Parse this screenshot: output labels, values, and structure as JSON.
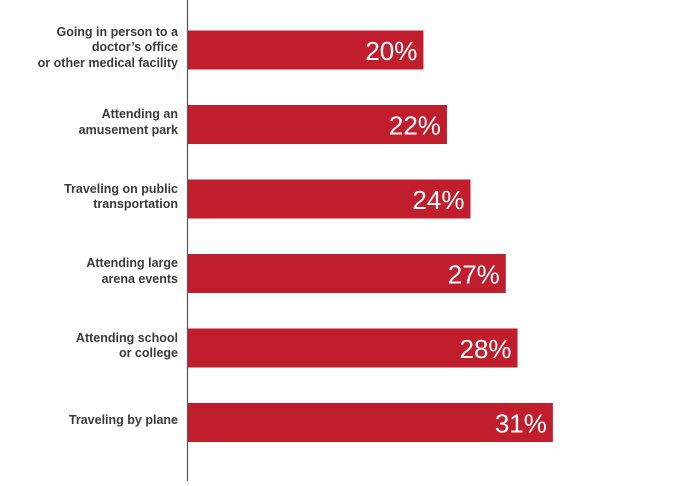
{
  "chart_data": {
    "type": "bar",
    "orientation": "horizontal",
    "categories": [
      "Going in person to a \ndoctor’s office\nor other medical facility",
      "Attending an\namusement park",
      "Traveling on public\ntransportation",
      "Attending large\narena events",
      "Attending school\nor college",
      "Traveling by plane"
    ],
    "values": [
      20,
      22,
      24,
      27,
      28,
      31
    ],
    "value_labels": [
      "20%",
      "22%",
      "24%",
      "27%",
      "28%",
      "31%"
    ],
    "unit": "%",
    "xlim": [
      0,
      43.5
    ],
    "bar_color": "#c01e2d",
    "axis_color": "#555555",
    "grid": false,
    "legend": "none"
  }
}
